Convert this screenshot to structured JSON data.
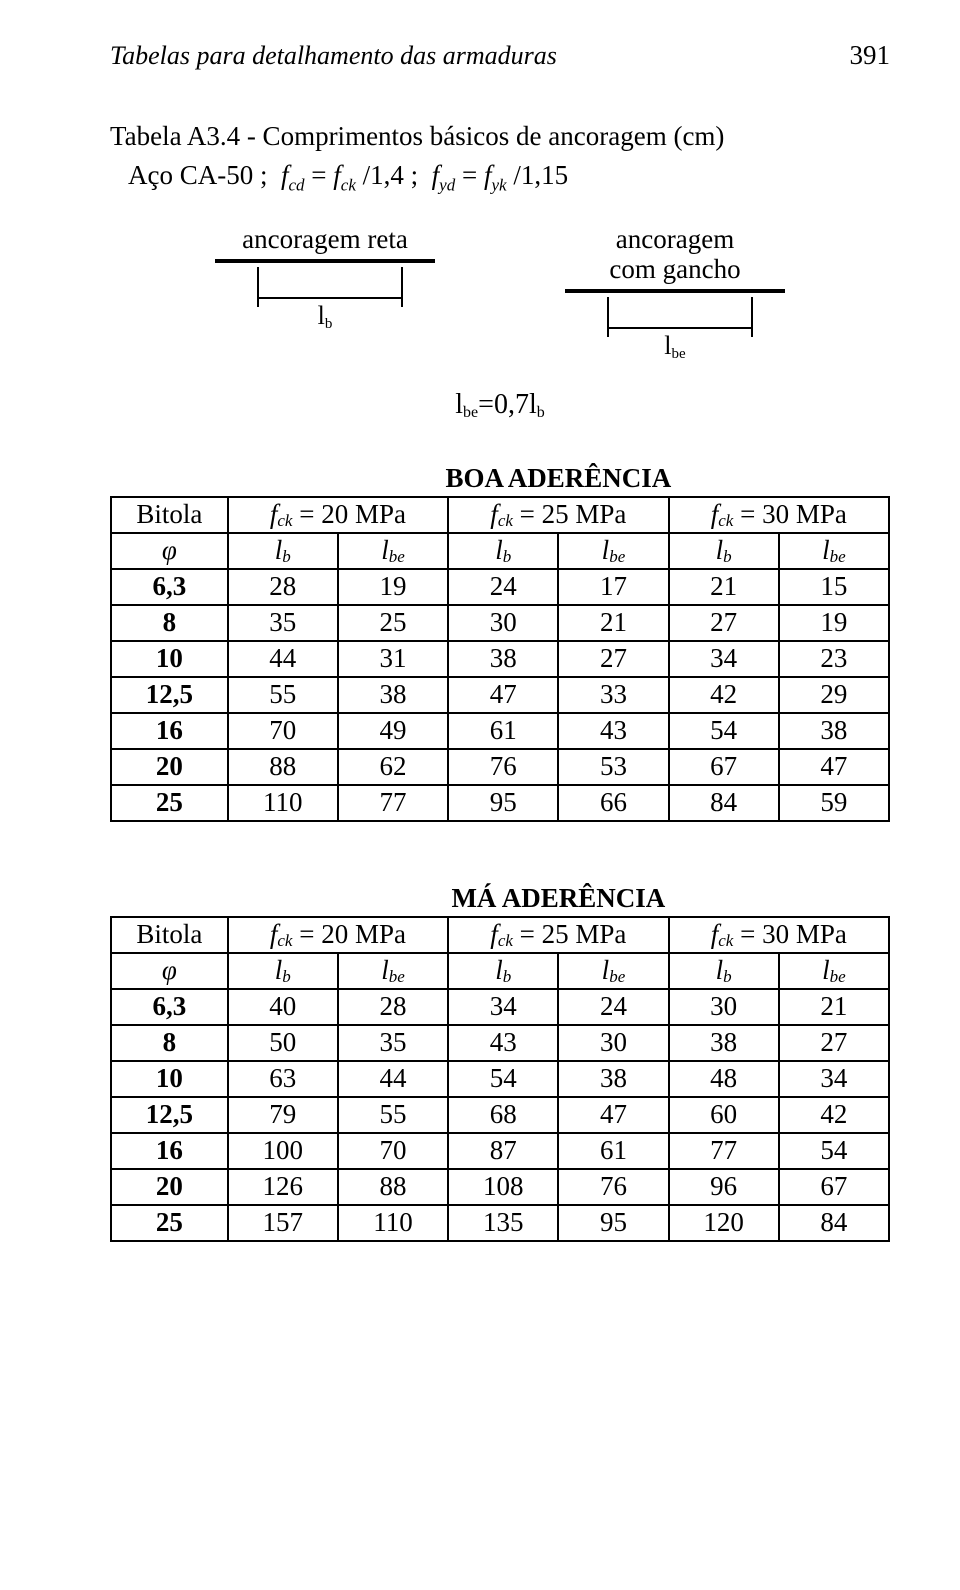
{
  "header": {
    "title": "Tabelas para detalhamento das armaduras",
    "page": "391"
  },
  "caption_prefix": "Tabela A3.4 - Comprimentos básicos de ancoragem (cm)",
  "caption_formula": "Aço CA-50 ;  f_cd = f_ck / 1,4 ;  f_yd = f_yk / 1,15",
  "anchors": {
    "left": {
      "label": "ancoragem reta",
      "dim": "l_b"
    },
    "right": {
      "label_l1": "ancoragem",
      "label_l2": "com gancho",
      "dim": "l_be"
    },
    "relation": "l_be = 0,7 l_b"
  },
  "tables": [
    {
      "title": "BOA ADERÊNCIA",
      "bitola_label": "Bitola",
      "phi": "φ",
      "fck_labels": [
        "f_ck = 20 MPa",
        "f_ck = 25 MPa",
        "f_ck = 30 MPa"
      ],
      "col_labels": [
        "l_b",
        "l_be",
        "l_b",
        "l_be",
        "l_b",
        "l_be"
      ],
      "rows": [
        [
          "6,3",
          28,
          19,
          24,
          17,
          21,
          15
        ],
        [
          "8",
          35,
          25,
          30,
          21,
          27,
          19
        ],
        [
          "10",
          44,
          31,
          38,
          27,
          34,
          23
        ],
        [
          "12,5",
          55,
          38,
          47,
          33,
          42,
          29
        ],
        [
          "16",
          70,
          49,
          61,
          43,
          54,
          38
        ],
        [
          "20",
          88,
          62,
          76,
          53,
          67,
          47
        ],
        [
          "25",
          110,
          77,
          95,
          66,
          84,
          59
        ]
      ]
    },
    {
      "title": "MÁ ADERÊNCIA",
      "bitola_label": "Bitola",
      "phi": "φ",
      "fck_labels": [
        "f_ck = 20 MPa",
        "f_ck = 25 MPa",
        "f_ck = 30 MPa"
      ],
      "col_labels": [
        "l_b",
        "l_be",
        "l_b",
        "l_be",
        "l_b",
        "l_be"
      ],
      "rows": [
        [
          "6,3",
          40,
          28,
          34,
          24,
          30,
          21
        ],
        [
          "8",
          50,
          35,
          43,
          30,
          38,
          27
        ],
        [
          "10",
          63,
          44,
          54,
          38,
          48,
          34
        ],
        [
          "12,5",
          79,
          55,
          68,
          47,
          60,
          42
        ],
        [
          "16",
          100,
          70,
          87,
          61,
          77,
          54
        ],
        [
          "20",
          126,
          88,
          108,
          76,
          96,
          67
        ],
        [
          "25",
          157,
          110,
          135,
          95,
          120,
          84
        ]
      ]
    }
  ],
  "style": {
    "font_family": "Times New Roman",
    "text_color": "#000000",
    "background": "#ffffff",
    "border_color": "#000000",
    "title_fontsize": 27,
    "cell_fontsize": 27,
    "bold_first_col": true
  }
}
